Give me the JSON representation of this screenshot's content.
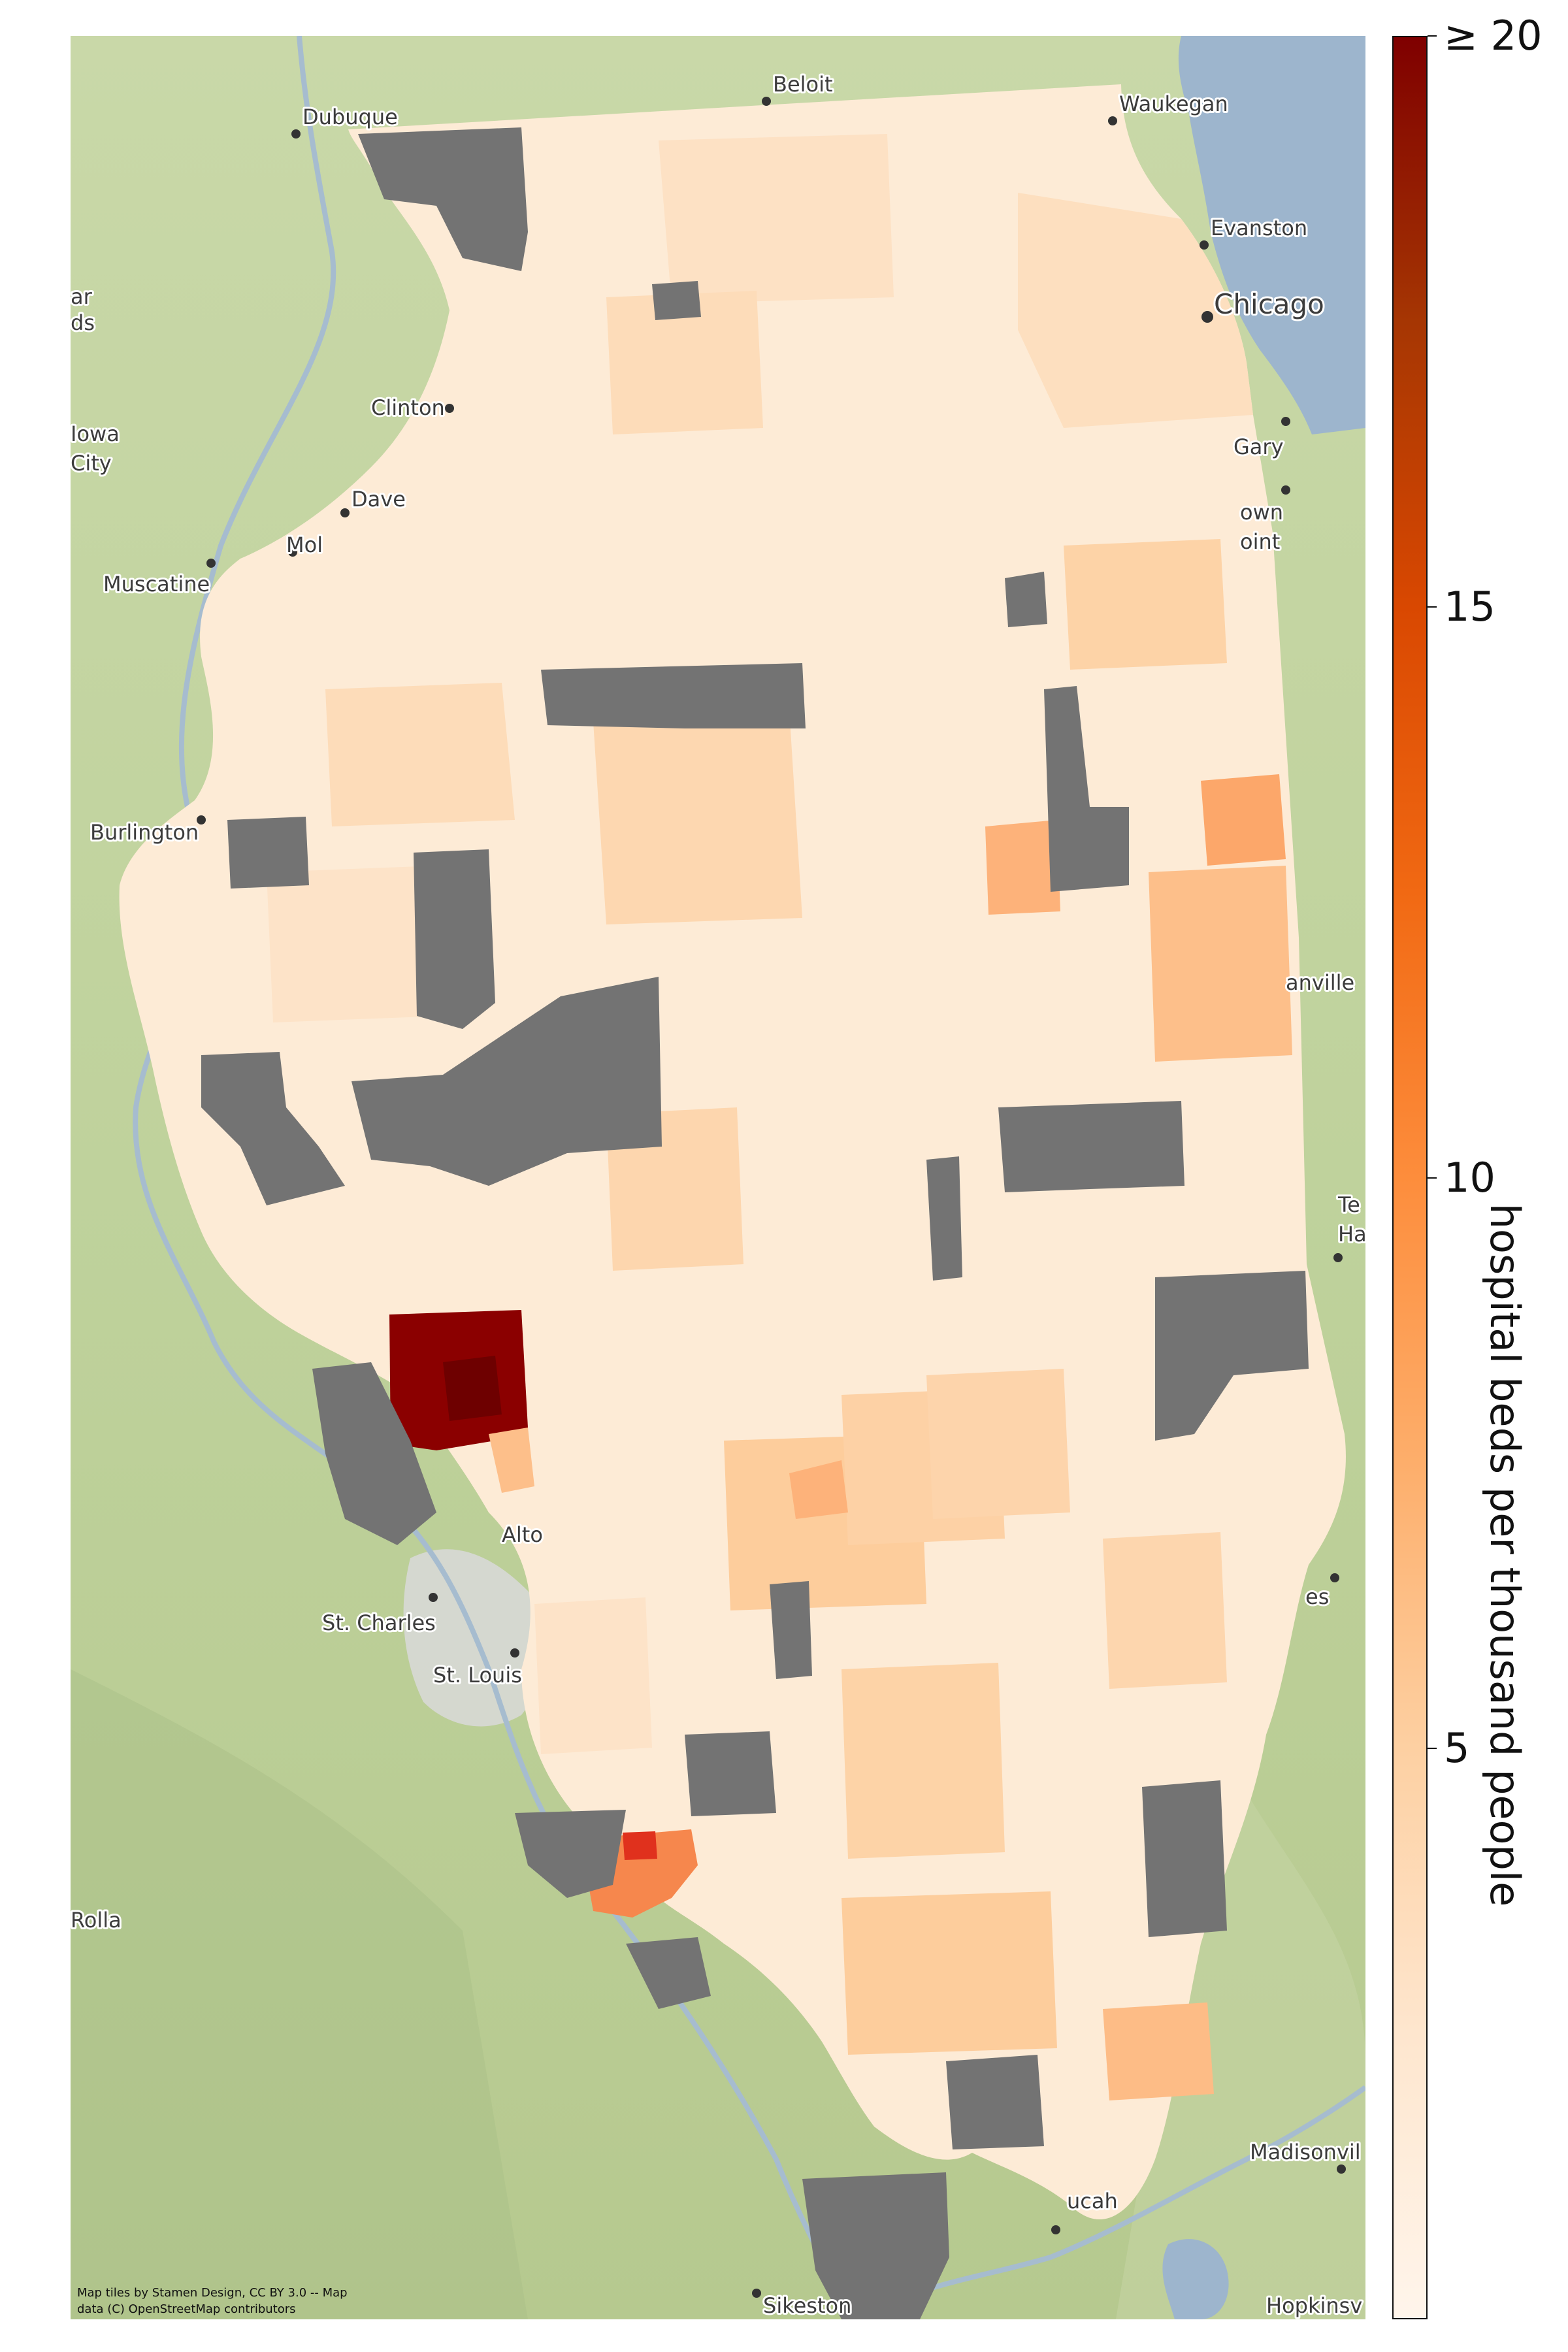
{
  "map": {
    "basemap": "terrain tiles",
    "region": "Illinois",
    "attribution_line1": "Map tiles by Stamen Design, CC BY 3.0 -- Map",
    "attribution_line2": "data (C) OpenStreetMap contributors",
    "no_data_color": "#737373",
    "water_color": "#9db5cd"
  },
  "cities": [
    {
      "name": "Beloit"
    },
    {
      "name": "Dubuque"
    },
    {
      "name": "Waukegan"
    },
    {
      "name": "Evanston"
    },
    {
      "name": "Chicago"
    },
    {
      "name": "Gary"
    },
    {
      "name": "Clinton"
    },
    {
      "name": "Iowa"
    },
    {
      "name": "City"
    },
    {
      "name": "Muscatine"
    },
    {
      "name": "Burlington"
    },
    {
      "name": "anville"
    },
    {
      "name": "St. Charles"
    },
    {
      "name": "St. Louis"
    },
    {
      "name": "Rolla"
    },
    {
      "name": "Madisonvil"
    },
    {
      "name": "ucah"
    },
    {
      "name": "Sikeston"
    },
    {
      "name": "Hopkinsv"
    },
    {
      "name": "Dave"
    },
    {
      "name": "Mol"
    },
    {
      "name": "Alto"
    },
    {
      "name": "own"
    },
    {
      "name": "oint"
    },
    {
      "name": "Te"
    },
    {
      "name": "Ha"
    },
    {
      "name": "es"
    },
    {
      "name": "ds"
    },
    {
      "name": "ar"
    }
  ],
  "colorbar": {
    "title": "hospital beds per thousand people",
    "min": 0,
    "max": 20,
    "ticks": [
      {
        "value": 5,
        "label": "5"
      },
      {
        "value": 10,
        "label": "10"
      },
      {
        "value": 15,
        "label": "15"
      },
      {
        "value": 20,
        "label": "≥ 20"
      }
    ],
    "colormap": [
      "#fff5eb",
      "#fee6ce",
      "#fdd0a2",
      "#fdae6b",
      "#fd8d3c",
      "#f16913",
      "#d94801",
      "#a63603",
      "#7f0000"
    ]
  }
}
